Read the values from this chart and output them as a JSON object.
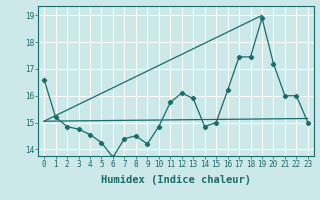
{
  "xlabel": "Humidex (Indice chaleur)",
  "bg_color": "#cce8e8",
  "grid_color": "#ffffff",
  "line_color": "#1a6b6b",
  "xlim": [
    -0.5,
    23.5
  ],
  "ylim": [
    13.75,
    19.35
  ],
  "xticks": [
    0,
    1,
    2,
    3,
    4,
    5,
    6,
    7,
    8,
    9,
    10,
    11,
    12,
    13,
    14,
    15,
    16,
    17,
    18,
    19,
    20,
    21,
    22,
    23
  ],
  "yticks": [
    14,
    15,
    16,
    17,
    18,
    19
  ],
  "main_data_x": [
    0,
    1,
    2,
    3,
    4,
    5,
    6,
    7,
    8,
    9,
    10,
    11,
    12,
    13,
    14,
    15,
    16,
    17,
    18,
    19,
    20,
    21,
    22,
    23
  ],
  "main_data_y": [
    16.6,
    15.2,
    14.85,
    14.75,
    14.55,
    14.25,
    13.7,
    14.4,
    14.5,
    14.2,
    14.85,
    15.75,
    16.1,
    15.9,
    14.85,
    15.0,
    16.2,
    17.45,
    17.45,
    18.9,
    17.2,
    16.0,
    16.0,
    15.0
  ],
  "line1_x": [
    0,
    19
  ],
  "line1_y": [
    15.05,
    19.0
  ],
  "line2_x": [
    0,
    23
  ],
  "line2_y": [
    15.05,
    15.15
  ],
  "tick_fontsize": 5.5,
  "xlabel_fontsize": 7.5
}
